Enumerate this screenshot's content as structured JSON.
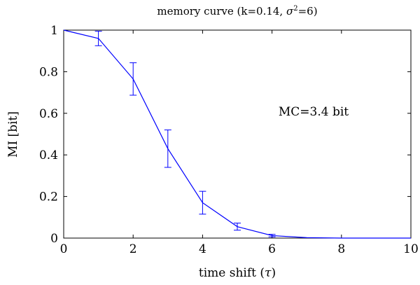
{
  "chart_data": {
    "type": "line",
    "title": "memory curve (k=0.14, σ²=6)",
    "title_parts": {
      "prefix": "memory curve (k=0.14, ",
      "sigma": "σ",
      "exponent": "2",
      "suffix": "=6)"
    },
    "xlabel": "time shift (τ)",
    "xlabel_parts": {
      "prefix": "time shift (",
      "tau": "τ",
      "suffix": ")"
    },
    "ylabel": "MI [bit]",
    "xlim": [
      0,
      10
    ],
    "ylim": [
      0,
      1
    ],
    "x_ticks": [
      0,
      2,
      4,
      6,
      8,
      10
    ],
    "y_ticks": [
      0,
      0.2,
      0.4,
      0.6,
      0.8,
      1
    ],
    "x_tick_labels": [
      "0",
      "2",
      "4",
      "6",
      "8",
      "10"
    ],
    "y_tick_labels": [
      "0",
      "0.2",
      "0.4",
      "0.6",
      "0.8",
      "1"
    ],
    "grid": false,
    "annotation": "MC=3.4 bit",
    "line_color": "#0000ff",
    "series": [
      {
        "x": [
          0,
          1,
          2,
          3,
          4,
          5,
          6,
          7,
          8,
          9,
          10
        ],
        "y": [
          1.0,
          0.96,
          0.765,
          0.43,
          0.17,
          0.055,
          0.012,
          0.002,
          0.0,
          0.0,
          0.0
        ],
        "err": [
          0,
          0.035,
          0.078,
          0.09,
          0.055,
          0.017,
          0.006,
          0,
          0,
          0,
          0
        ]
      }
    ]
  }
}
